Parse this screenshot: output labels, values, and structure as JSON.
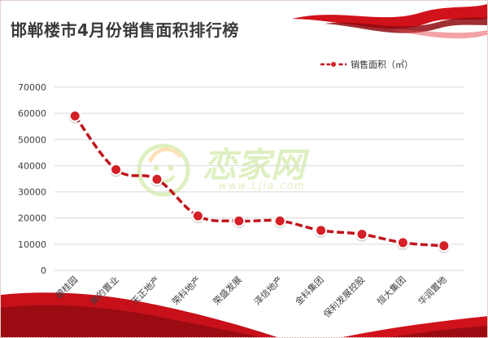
{
  "chart_data": {
    "type": "line",
    "title": "邯郸楼市4月份销售面积排行榜",
    "categories": [
      "碧桂园",
      "美的置业",
      "天正地产",
      "荣科地产",
      "荣盛发展",
      "泽信地产",
      "金科集团",
      "保利发展控股",
      "恒大集团",
      "华润置地"
    ],
    "series": [
      {
        "name": "销售面积（㎡）",
        "values": [
          59000,
          38500,
          34800,
          20800,
          18900,
          18900,
          15300,
          13800,
          10600,
          9400
        ]
      }
    ],
    "yticks": [
      0,
      10000,
      20000,
      30000,
      40000,
      50000,
      60000,
      70000
    ],
    "ylim": [
      0,
      70000
    ],
    "grid": true,
    "legend_position": "top-right",
    "colors": {
      "line": "#c0161d",
      "marker_fill": "#d42026",
      "marker_ring": "#ffffff",
      "grid": "#d9d9d9",
      "axis_text": "#404040",
      "ribbon": "#d0121b"
    }
  },
  "watermark": {
    "text": "恋家网",
    "url": "www.Ljia.com",
    "icon": "smiley-mascot-icon"
  }
}
